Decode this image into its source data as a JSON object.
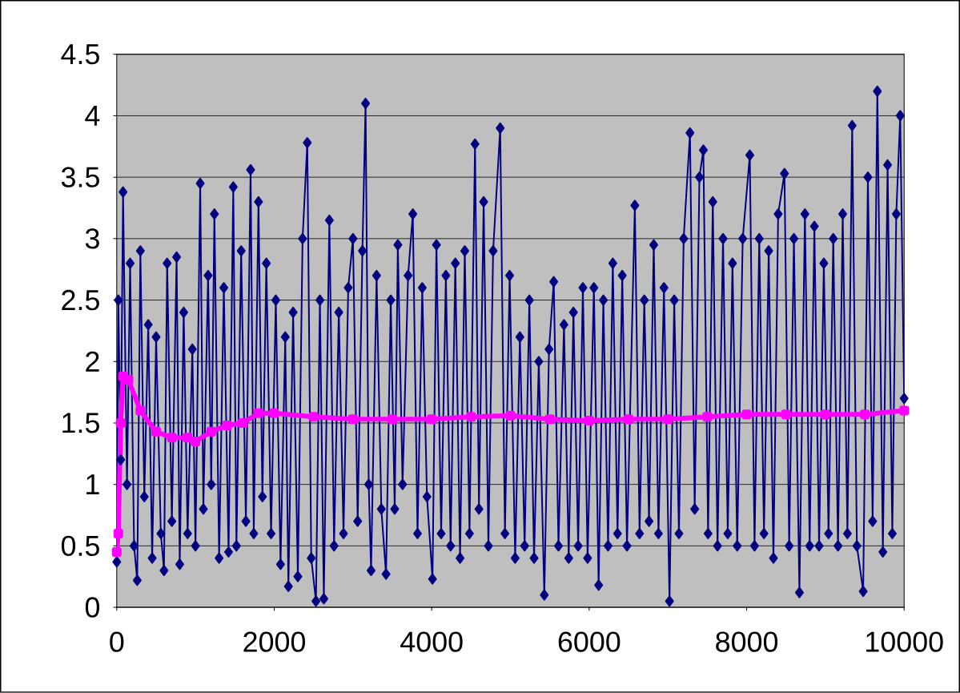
{
  "chart_data": {
    "type": "line",
    "xlim": [
      0,
      10000
    ],
    "ylim": [
      0,
      4.5
    ],
    "xticks": [
      0,
      2000,
      4000,
      6000,
      8000,
      10000
    ],
    "yticks": [
      0,
      0.5,
      1,
      1.5,
      2,
      2.5,
      3,
      3.5,
      4,
      4.5
    ],
    "grid": "y",
    "line_style": "solid",
    "series": [
      {
        "color": "#000080",
        "marker": "diamond",
        "x": [
          0,
          20,
          50,
          80,
          130,
          170,
          220,
          260,
          300,
          350,
          400,
          450,
          500,
          560,
          600,
          640,
          700,
          760,
          800,
          850,
          900,
          960,
          1000,
          1060,
          1100,
          1160,
          1200,
          1240,
          1300,
          1360,
          1420,
          1480,
          1520,
          1580,
          1640,
          1700,
          1740,
          1800,
          1850,
          1900,
          1960,
          2020,
          2080,
          2140,
          2180,
          2240,
          2300,
          2360,
          2420,
          2470,
          2530,
          2580,
          2630,
          2700,
          2760,
          2820,
          2880,
          2940,
          3000,
          3060,
          3120,
          3160,
          3200,
          3230,
          3300,
          3360,
          3420,
          3480,
          3530,
          3570,
          3630,
          3700,
          3760,
          3820,
          3880,
          3940,
          4010,
          4060,
          4120,
          4180,
          4240,
          4300,
          4360,
          4420,
          4480,
          4550,
          4600,
          4660,
          4720,
          4780,
          4870,
          4930,
          4990,
          5060,
          5120,
          5180,
          5240,
          5300,
          5360,
          5430,
          5490,
          5550,
          5610,
          5680,
          5740,
          5800,
          5860,
          5920,
          5980,
          6060,
          6120,
          6180,
          6240,
          6300,
          6360,
          6420,
          6480,
          6580,
          6640,
          6700,
          6760,
          6820,
          6880,
          6950,
          7020,
          7080,
          7140,
          7200,
          7280,
          7340,
          7400,
          7450,
          7510,
          7570,
          7630,
          7700,
          7760,
          7820,
          7880,
          7950,
          8040,
          8100,
          8160,
          8220,
          8280,
          8340,
          8400,
          8480,
          8540,
          8600,
          8670,
          8740,
          8800,
          8860,
          8920,
          8980,
          9040,
          9100,
          9160,
          9220,
          9280,
          9340,
          9400,
          9480,
          9540,
          9600,
          9660,
          9730,
          9790,
          9850,
          9900,
          9950,
          10000
        ],
        "values": [
          0.37,
          2.5,
          1.2,
          3.38,
          1.0,
          2.8,
          0.5,
          0.22,
          2.9,
          0.9,
          2.3,
          0.4,
          2.2,
          0.6,
          0.3,
          2.8,
          0.7,
          2.85,
          0.35,
          2.4,
          0.6,
          2.1,
          0.5,
          3.45,
          0.8,
          2.7,
          1.0,
          3.2,
          0.4,
          2.6,
          0.45,
          3.42,
          0.5,
          2.9,
          0.7,
          3.56,
          0.6,
          3.3,
          0.9,
          2.8,
          0.6,
          2.5,
          0.35,
          2.2,
          0.17,
          2.4,
          0.25,
          3.0,
          3.78,
          0.4,
          0.05,
          2.5,
          0.07,
          3.15,
          0.5,
          2.4,
          0.6,
          2.6,
          3.0,
          0.7,
          2.9,
          4.1,
          1.0,
          0.3,
          2.7,
          0.8,
          0.27,
          2.5,
          0.8,
          2.95,
          1.0,
          2.7,
          3.2,
          0.6,
          2.6,
          0.9,
          0.23,
          2.95,
          0.6,
          2.7,
          0.5,
          2.8,
          0.4,
          2.9,
          0.6,
          3.77,
          0.8,
          3.3,
          0.5,
          2.9,
          3.9,
          0.6,
          2.7,
          0.4,
          2.2,
          0.5,
          2.5,
          0.4,
          2.0,
          0.1,
          2.1,
          2.65,
          0.5,
          2.3,
          0.4,
          2.4,
          0.5,
          2.6,
          0.4,
          2.6,
          0.18,
          2.5,
          0.5,
          2.8,
          0.6,
          2.7,
          0.5,
          3.27,
          0.6,
          2.5,
          0.7,
          2.95,
          0.6,
          2.6,
          0.05,
          2.5,
          0.6,
          3.0,
          3.86,
          0.8,
          3.5,
          3.72,
          0.6,
          3.3,
          0.5,
          3.0,
          0.6,
          2.8,
          0.5,
          3.0,
          3.68,
          0.5,
          3.0,
          0.6,
          2.9,
          0.4,
          3.2,
          3.53,
          0.5,
          3.0,
          0.12,
          3.2,
          0.5,
          3.1,
          0.5,
          2.8,
          0.6,
          3.0,
          0.5,
          3.2,
          0.6,
          3.92,
          0.5,
          0.13,
          3.5,
          0.7,
          4.2,
          0.45,
          3.6,
          0.6,
          3.2,
          4.0,
          1.7
        ]
      },
      {
        "color": "#ff00ff",
        "marker": "square",
        "x": [
          0,
          20,
          50,
          80,
          150,
          300,
          500,
          700,
          900,
          1000,
          1200,
          1400,
          1600,
          1800,
          2000,
          2500,
          3000,
          3500,
          4000,
          4500,
          5000,
          5500,
          6000,
          6500,
          7000,
          7500,
          8000,
          8500,
          9000,
          9500,
          10000
        ],
        "values": [
          0.45,
          0.6,
          1.5,
          1.88,
          1.85,
          1.6,
          1.43,
          1.38,
          1.38,
          1.35,
          1.43,
          1.48,
          1.5,
          1.58,
          1.58,
          1.55,
          1.53,
          1.53,
          1.53,
          1.55,
          1.56,
          1.53,
          1.52,
          1.53,
          1.53,
          1.55,
          1.57,
          1.57,
          1.57,
          1.57,
          1.6
        ]
      }
    ]
  }
}
